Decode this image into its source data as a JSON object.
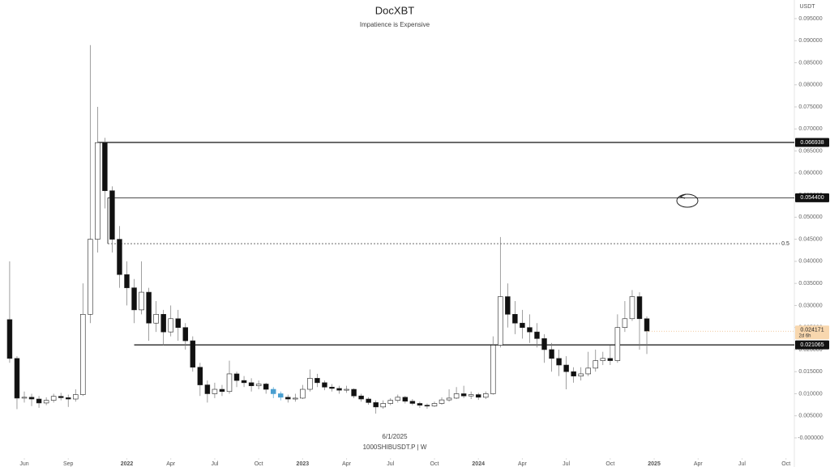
{
  "chart_data": {
    "type": "candlestick",
    "title": "DocXBT",
    "subtitle": "Impatience is Expensive",
    "unit": "USDT",
    "footer_date": "6/1/2025",
    "symbol": "1000SHIBUSDT.P | W",
    "up_color": "#ffffff",
    "down_color": "#111111",
    "outline_color": "#222222",
    "highlight_color": "#4a9fd0",
    "highlight": [
      36,
      37
    ],
    "xlim": [
      3.34,
      57.57
    ],
    "xticks": [
      {
        "value": 5,
        "label": "Jun"
      },
      {
        "value": 8,
        "label": "Sep"
      },
      {
        "value": 12,
        "label": "2022"
      },
      {
        "value": 15,
        "label": "Apr"
      },
      {
        "value": 18,
        "label": "Jul"
      },
      {
        "value": 21,
        "label": "Oct"
      },
      {
        "value": 24,
        "label": "2023"
      },
      {
        "value": 27,
        "label": "Apr"
      },
      {
        "value": 30,
        "label": "Jul"
      },
      {
        "value": 33,
        "label": "Oct"
      },
      {
        "value": 36,
        "label": "2024"
      },
      {
        "value": 39,
        "label": "Apr"
      },
      {
        "value": 42,
        "label": "Jul"
      },
      {
        "value": 45,
        "label": "Oct"
      },
      {
        "value": 48,
        "label": "2025"
      },
      {
        "value": 51,
        "label": "Apr"
      },
      {
        "value": 54,
        "label": "Jul"
      },
      {
        "value": 57,
        "label": "Oct"
      }
    ],
    "ylim": [
      0,
      0.095
    ],
    "yticks": [
      {
        "value": 0,
        "label": "-0.000000"
      },
      {
        "value": 0.005,
        "label": "0.005000"
      },
      {
        "value": 0.01,
        "label": "0.010000"
      },
      {
        "value": 0.015,
        "label": "0.015000"
      },
      {
        "value": 0.02,
        "label": "0.020000"
      },
      {
        "value": 0.025,
        "label": "0.025000"
      },
      {
        "value": 0.03,
        "label": "0.030000"
      },
      {
        "value": 0.035,
        "label": "0.035000"
      },
      {
        "value": 0.04,
        "label": "0.040000"
      },
      {
        "value": 0.045,
        "label": "0.045000"
      },
      {
        "value": 0.05,
        "label": "0.050000"
      },
      {
        "value": 0.055,
        "label": "0.055000"
      },
      {
        "value": 0.06,
        "label": "0.060000"
      },
      {
        "value": 0.065,
        "label": "0.065000"
      },
      {
        "value": 0.07,
        "label": "0.070000"
      },
      {
        "value": 0.075,
        "label": "0.075000"
      },
      {
        "value": 0.08,
        "label": "0.080000"
      },
      {
        "value": 0.085,
        "label": "0.085000"
      },
      {
        "value": 0.09,
        "label": "0.090000"
      },
      {
        "value": 0.095,
        "label": "0.095000"
      }
    ],
    "levels": [
      {
        "price": 0.066938,
        "x": 10
      },
      {
        "price": {
          "value": 0.0544,
          "label": "0.054400"
        },
        "x": 10.7
      },
      {
        "price": 0.021065,
        "x": 12.5
      }
    ],
    "fib": {
      "ratio": 0.5,
      "price": 0.044,
      "x": 10.7
    },
    "last_price": 0.024171,
    "countdown": "2d 6h",
    "x": [
      4,
      4.5,
      5,
      5.5,
      6,
      6.5,
      7,
      7.5,
      8,
      8.5,
      9,
      9.5,
      10,
      10.5,
      11,
      11.5,
      12,
      12.5,
      13,
      13.5,
      14,
      14.5,
      15,
      15.5,
      16,
      16.5,
      17,
      17.5,
      18,
      18.5,
      19,
      19.5,
      20,
      20.5,
      21,
      21.5,
      22,
      22.5,
      23,
      23.5,
      24,
      24.5,
      25,
      25.5,
      26,
      26.5,
      27,
      27.5,
      28,
      28.5,
      29,
      29.5,
      30,
      30.5,
      31,
      31.5,
      32,
      32.5,
      33,
      33.5,
      34,
      34.5,
      35,
      35.5,
      36,
      36.5,
      37,
      37.5,
      38,
      38.5,
      39,
      39.5,
      40,
      40.5,
      41,
      41.5,
      42,
      42.5,
      43,
      43.5,
      44,
      44.5,
      45,
      45.5,
      46,
      46.5,
      47,
      47.5
    ],
    "ohlc": [
      [
        0.0268,
        0.04,
        0.017,
        0.018
      ],
      [
        0.018,
        0.0185,
        0.0065,
        0.009
      ],
      [
        0.009,
        0.0105,
        0.008,
        0.0092
      ],
      [
        0.0092,
        0.01,
        0.0072,
        0.0088
      ],
      [
        0.0088,
        0.0095,
        0.0068,
        0.0079
      ],
      [
        0.0079,
        0.0092,
        0.0074,
        0.0085
      ],
      [
        0.0085,
        0.01,
        0.008,
        0.0094
      ],
      [
        0.0094,
        0.0102,
        0.0085,
        0.0091
      ],
      [
        0.0091,
        0.0098,
        0.007,
        0.0088
      ],
      [
        0.0088,
        0.011,
        0.0082,
        0.0098
      ],
      [
        0.0098,
        0.035,
        0.0095,
        0.028
      ],
      [
        0.028,
        0.089,
        0.026,
        0.045
      ],
      [
        0.045,
        0.075,
        0.042,
        0.0669
      ],
      [
        0.0669,
        0.068,
        0.052,
        0.056
      ],
      [
        0.056,
        0.057,
        0.042,
        0.045
      ],
      [
        0.045,
        0.048,
        0.034,
        0.037
      ],
      [
        0.037,
        0.04,
        0.03,
        0.034
      ],
      [
        0.034,
        0.036,
        0.026,
        0.029
      ],
      [
        0.029,
        0.04,
        0.028,
        0.033
      ],
      [
        0.033,
        0.034,
        0.022,
        0.026
      ],
      [
        0.026,
        0.031,
        0.024,
        0.028
      ],
      [
        0.028,
        0.029,
        0.021,
        0.024
      ],
      [
        0.024,
        0.03,
        0.023,
        0.027
      ],
      [
        0.027,
        0.029,
        0.022,
        0.025
      ],
      [
        0.025,
        0.026,
        0.02,
        0.022
      ],
      [
        0.022,
        0.023,
        0.015,
        0.016
      ],
      [
        0.016,
        0.017,
        0.0095,
        0.012
      ],
      [
        0.012,
        0.013,
        0.008,
        0.01
      ],
      [
        0.01,
        0.0125,
        0.009,
        0.011
      ],
      [
        0.011,
        0.012,
        0.0095,
        0.0105
      ],
      [
        0.0105,
        0.0175,
        0.01,
        0.0145
      ],
      [
        0.0145,
        0.015,
        0.0115,
        0.013
      ],
      [
        0.013,
        0.014,
        0.0115,
        0.0125
      ],
      [
        0.0125,
        0.0135,
        0.0105,
        0.0118
      ],
      [
        0.0118,
        0.013,
        0.011,
        0.0122
      ],
      [
        0.0122,
        0.0125,
        0.01,
        0.011
      ],
      [
        0.011,
        0.0115,
        0.009,
        0.01
      ],
      [
        0.01,
        0.0105,
        0.0085,
        0.0092
      ],
      [
        0.0092,
        0.0098,
        0.008,
        0.0088
      ],
      [
        0.0088,
        0.01,
        0.0082,
        0.009
      ],
      [
        0.009,
        0.012,
        0.0088,
        0.011
      ],
      [
        0.011,
        0.0155,
        0.0105,
        0.0135
      ],
      [
        0.0135,
        0.0145,
        0.0115,
        0.0125
      ],
      [
        0.0125,
        0.013,
        0.0108,
        0.0115
      ],
      [
        0.0115,
        0.0122,
        0.0105,
        0.0112
      ],
      [
        0.0112,
        0.0118,
        0.01,
        0.0108
      ],
      [
        0.0108,
        0.0118,
        0.0102,
        0.011
      ],
      [
        0.011,
        0.0112,
        0.009,
        0.0095
      ],
      [
        0.0095,
        0.01,
        0.0082,
        0.0088
      ],
      [
        0.0088,
        0.0092,
        0.0075,
        0.008
      ],
      [
        0.008,
        0.0085,
        0.0055,
        0.007
      ],
      [
        0.007,
        0.0085,
        0.0066,
        0.0078
      ],
      [
        0.0078,
        0.009,
        0.0074,
        0.0085
      ],
      [
        0.0085,
        0.0098,
        0.008,
        0.0092
      ],
      [
        0.0092,
        0.0095,
        0.0078,
        0.0083
      ],
      [
        0.0083,
        0.0088,
        0.0074,
        0.0078
      ],
      [
        0.0078,
        0.0082,
        0.0068,
        0.0074
      ],
      [
        0.0074,
        0.0078,
        0.0066,
        0.0072
      ],
      [
        0.0072,
        0.0082,
        0.007,
        0.0078
      ],
      [
        0.0078,
        0.0092,
        0.0075,
        0.0086
      ],
      [
        0.0086,
        0.011,
        0.0082,
        0.009
      ],
      [
        0.009,
        0.0115,
        0.0088,
        0.01
      ],
      [
        0.01,
        0.0118,
        0.009,
        0.0095
      ],
      [
        0.0095,
        0.0105,
        0.0088,
        0.0098
      ],
      [
        0.0098,
        0.0102,
        0.0086,
        0.0092
      ],
      [
        0.0092,
        0.0105,
        0.0088,
        0.01
      ],
      [
        0.01,
        0.023,
        0.0098,
        0.021
      ],
      [
        0.021,
        0.0455,
        0.0205,
        0.032
      ],
      [
        0.032,
        0.035,
        0.025,
        0.028
      ],
      [
        0.028,
        0.031,
        0.0235,
        0.026
      ],
      [
        0.026,
        0.029,
        0.0225,
        0.025
      ],
      [
        0.025,
        0.028,
        0.0215,
        0.024
      ],
      [
        0.024,
        0.026,
        0.0205,
        0.0225
      ],
      [
        0.0225,
        0.0235,
        0.017,
        0.02
      ],
      [
        0.02,
        0.0215,
        0.015,
        0.018
      ],
      [
        0.018,
        0.02,
        0.014,
        0.0165
      ],
      [
        0.0165,
        0.0185,
        0.011,
        0.015
      ],
      [
        0.015,
        0.016,
        0.0125,
        0.014
      ],
      [
        0.014,
        0.016,
        0.013,
        0.0145
      ],
      [
        0.0145,
        0.0195,
        0.014,
        0.0158
      ],
      [
        0.0158,
        0.02,
        0.015,
        0.0175
      ],
      [
        0.0175,
        0.0195,
        0.0165,
        0.018
      ],
      [
        0.018,
        0.021,
        0.0165,
        0.0175
      ],
      [
        0.0175,
        0.028,
        0.017,
        0.025
      ],
      [
        0.025,
        0.031,
        0.024,
        0.027
      ],
      [
        0.027,
        0.0335,
        0.0265,
        0.032
      ],
      [
        0.032,
        0.033,
        0.02,
        0.027
      ],
      [
        0.027,
        0.0275,
        0.019,
        0.0242
      ]
    ]
  }
}
